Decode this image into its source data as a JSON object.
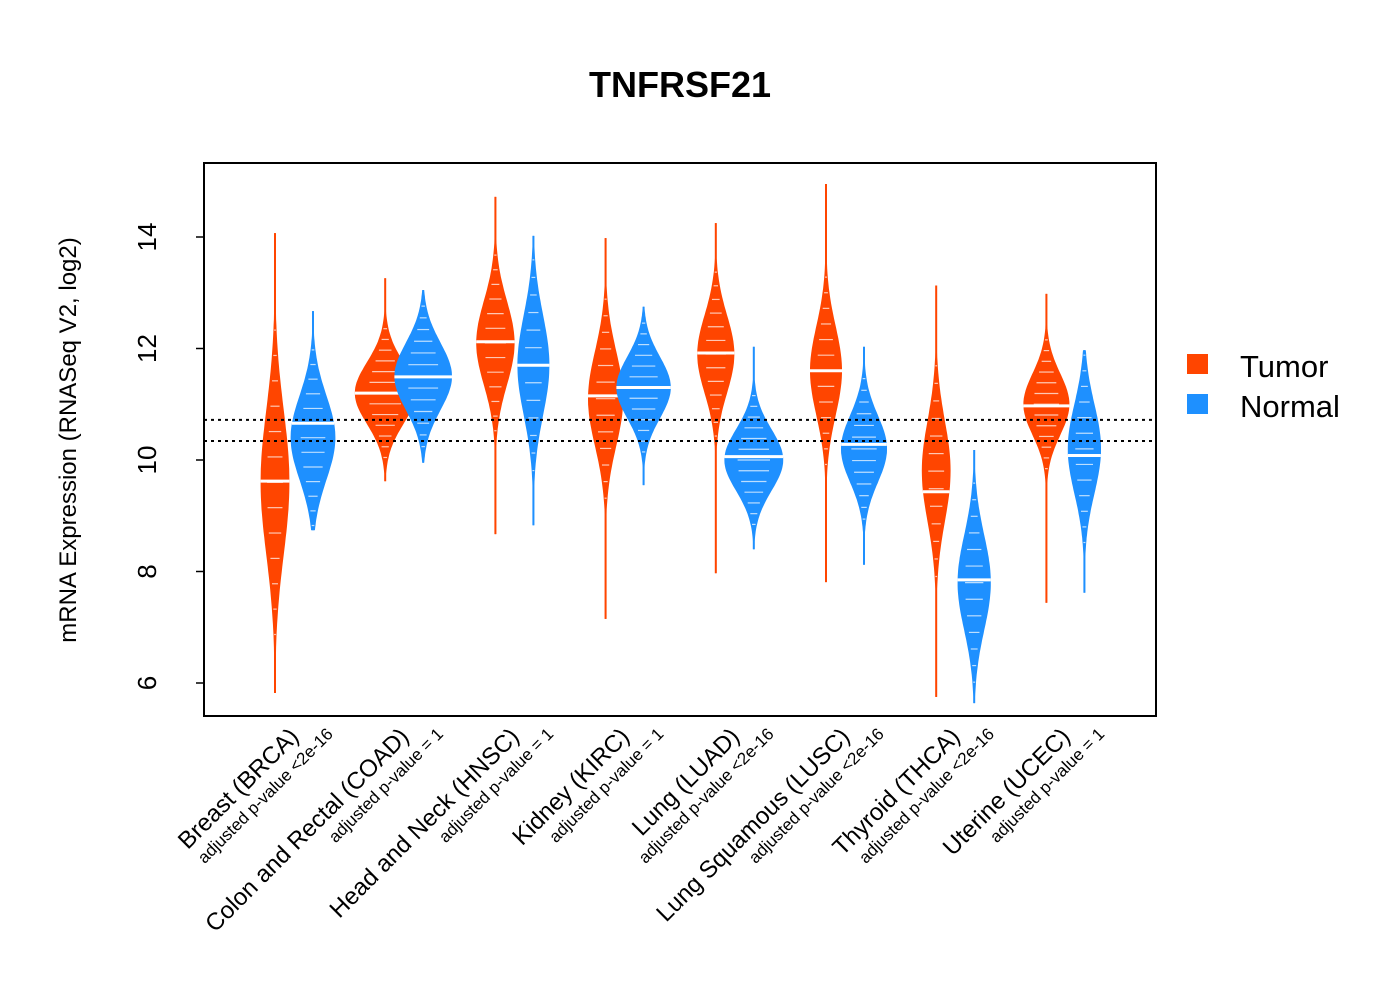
{
  "chart_data": {
    "type": "violin",
    "title": "TNFRSF21",
    "xlabel": "",
    "ylabel": "mRNA Expression (RNASeq V2, log2)",
    "ylim": [
      5.5,
      15.4
    ],
    "yticks": [
      6,
      8,
      10,
      12,
      14
    ],
    "reference_lines": [
      10.72,
      10.34
    ],
    "legend": {
      "position": "right",
      "entries": [
        {
          "label": "Tumor",
          "color": "#FF4500"
        },
        {
          "label": "Normal",
          "color": "#1E90FF"
        }
      ]
    },
    "categories": [
      {
        "name": "Breast (BRCA)",
        "pvalue": "adjusted p-value <2e-16",
        "tumor": {
          "min": 5.82,
          "max": 14.07,
          "median": 9.62,
          "mode": 9.6,
          "spread": 1.3,
          "width": 0.45
        },
        "normal": {
          "min": 8.74,
          "max": 12.67,
          "median": 10.66,
          "mode": 10.4,
          "spread": 0.75,
          "width": 0.7
        }
      },
      {
        "name": "Colon and Rectal (COAD)",
        "pvalue": "adjusted p-value = 1",
        "tumor": {
          "min": 9.62,
          "max": 13.26,
          "median": 11.2,
          "mode": 11.2,
          "spread": 0.55,
          "width": 0.95
        },
        "normal": {
          "min": 9.95,
          "max": 13.05,
          "median": 11.49,
          "mode": 11.5,
          "spread": 0.6,
          "width": 0.9
        }
      },
      {
        "name": "Head and Neck (HNSC)",
        "pvalue": "adjusted p-value = 1",
        "tumor": {
          "min": 8.67,
          "max": 14.72,
          "median": 12.12,
          "mode": 12.1,
          "spread": 0.75,
          "width": 0.6
        },
        "normal": {
          "min": 8.83,
          "max": 14.02,
          "median": 11.7,
          "mode": 11.7,
          "spread": 0.9,
          "width": 0.5
        }
      },
      {
        "name": "Kidney (KIRC)",
        "pvalue": "adjusted p-value = 1",
        "tumor": {
          "min": 7.15,
          "max": 13.98,
          "median": 11.15,
          "mode": 11.1,
          "spread": 0.85,
          "width": 0.55
        },
        "normal": {
          "min": 9.55,
          "max": 12.75,
          "median": 11.3,
          "mode": 11.3,
          "spread": 0.55,
          "width": 0.85
        }
      },
      {
        "name": "Lung (LUAD)",
        "pvalue": "adjusted p-value <2e-16",
        "tumor": {
          "min": 7.97,
          "max": 14.25,
          "median": 11.92,
          "mode": 11.9,
          "spread": 0.7,
          "width": 0.58
        },
        "normal": {
          "min": 8.4,
          "max": 12.03,
          "median": 10.06,
          "mode": 10.0,
          "spread": 0.55,
          "width": 0.92
        }
      },
      {
        "name": "Lung Squamous (LUSC)",
        "pvalue": "adjusted p-value <2e-16",
        "tumor": {
          "min": 7.81,
          "max": 14.95,
          "median": 11.6,
          "mode": 11.6,
          "spread": 0.8,
          "width": 0.5
        },
        "normal": {
          "min": 8.12,
          "max": 12.03,
          "median": 10.28,
          "mode": 10.2,
          "spread": 0.6,
          "width": 0.72
        }
      },
      {
        "name": "Thyroid (THCA)",
        "pvalue": "adjusted p-value <2e-16",
        "tumor": {
          "min": 5.75,
          "max": 13.13,
          "median": 9.43,
          "mode": 9.8,
          "spread": 0.9,
          "width": 0.45
        },
        "normal": {
          "min": 5.64,
          "max": 10.18,
          "median": 7.85,
          "mode": 7.8,
          "spread": 0.85,
          "width": 0.52
        }
      },
      {
        "name": "Uterine (UCEC)",
        "pvalue": "adjusted p-value = 1",
        "tumor": {
          "min": 7.44,
          "max": 12.98,
          "median": 10.97,
          "mode": 11.0,
          "spread": 0.55,
          "width": 0.72
        },
        "normal": {
          "min": 7.62,
          "max": 11.97,
          "median": 10.08,
          "mode": 10.2,
          "spread": 0.8,
          "width": 0.52
        }
      }
    ]
  }
}
